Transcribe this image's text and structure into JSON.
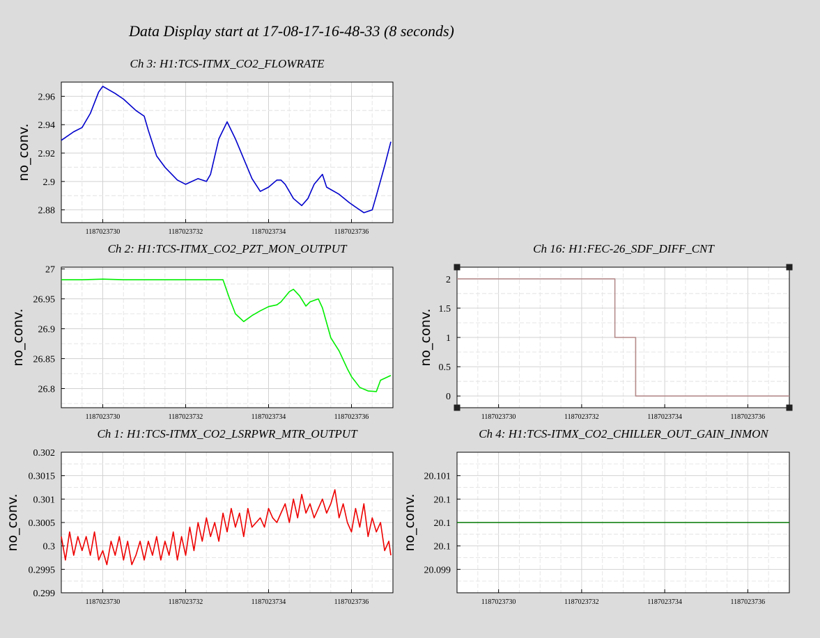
{
  "page_title": "Data Display start at 17-08-17-16-48-33 (8 seconds)",
  "chart_data": [
    {
      "type": "line",
      "title": "Ch 3: H1:TCS-ITMX_CO2_FLOWRATE",
      "ylabel": "no_conv.",
      "color": "#0000cc",
      "xlim": [
        1187023729,
        1187023737
      ],
      "ylim": [
        2.871,
        2.97
      ],
      "xticks": [
        1187023730,
        1187023732,
        1187023734,
        1187023736
      ],
      "yticks": [
        2.88,
        2.9,
        2.92,
        2.94,
        2.96
      ],
      "ytick_labels": [
        "2.88",
        "2.9",
        "2.92",
        "2.94",
        "2.96"
      ],
      "series": [
        {
          "x": [
            1187023729.0,
            1187023729.3,
            1187023729.5,
            1187023729.7,
            1187023729.9,
            1187023730.0,
            1187023730.3,
            1187023730.5,
            1187023730.8,
            1187023731.0,
            1187023731.1,
            1187023731.3,
            1187023731.5,
            1187023731.8,
            1187023732.0,
            1187023732.3,
            1187023732.5,
            1187023732.6,
            1187023732.8,
            1187023733.0,
            1187023733.2,
            1187023733.4,
            1187023733.6,
            1187023733.8,
            1187023734.0,
            1187023734.2,
            1187023734.3,
            1187023734.4,
            1187023734.6,
            1187023734.8,
            1187023734.95,
            1187023735.1,
            1187023735.3,
            1187023735.4,
            1187023735.7,
            1187023735.95,
            1187023736.1,
            1187023736.3,
            1187023736.5,
            1187023736.6,
            1187023736.8,
            1187023736.95
          ],
          "y": [
            2.929,
            2.935,
            2.938,
            2.948,
            2.963,
            2.967,
            2.962,
            2.958,
            2.95,
            2.946,
            2.936,
            2.918,
            2.91,
            2.901,
            2.898,
            2.902,
            2.9,
            2.905,
            2.93,
            2.942,
            2.93,
            2.916,
            2.902,
            2.893,
            2.896,
            2.901,
            2.901,
            2.898,
            2.888,
            2.883,
            2.888,
            2.898,
            2.905,
            2.896,
            2.891,
            2.885,
            2.882,
            2.878,
            2.88,
            2.89,
            2.911,
            2.928
          ]
        }
      ]
    },
    {
      "type": "line",
      "title": "Ch 2: H1:TCS-ITMX_CO2_PZT_MON_OUTPUT",
      "ylabel": "no_conv.",
      "color": "#00ee00",
      "xlim": [
        1187023729,
        1187023737
      ],
      "ylim": [
        26.768,
        27.003
      ],
      "xticks": [
        1187023730,
        1187023732,
        1187023734,
        1187023736
      ],
      "yticks": [
        26.8,
        26.85,
        26.9,
        26.95,
        27.0
      ],
      "ytick_labels": [
        "26.8",
        "26.85",
        "26.9",
        "26.95",
        "27"
      ],
      "series": [
        {
          "x": [
            1187023729.0,
            1187023729.5,
            1187023730.0,
            1187023730.5,
            1187023731.0,
            1187023731.5,
            1187023732.0,
            1187023732.5,
            1187023732.9,
            1187023733.05,
            1187023733.2,
            1187023733.4,
            1187023733.6,
            1187023733.8,
            1187023734.0,
            1187023734.2,
            1187023734.3,
            1187023734.5,
            1187023734.6,
            1187023734.75,
            1187023734.9,
            1187023735.0,
            1187023735.2,
            1187023735.3,
            1187023735.5,
            1187023735.7,
            1187023735.9,
            1187023736.0,
            1187023736.2,
            1187023736.4,
            1187023736.6,
            1187023736.7,
            1187023736.95
          ],
          "y": [
            26.982,
            26.982,
            26.983,
            26.982,
            26.982,
            26.982,
            26.982,
            26.982,
            26.982,
            26.952,
            26.925,
            26.912,
            26.922,
            26.93,
            26.937,
            26.94,
            26.945,
            26.962,
            26.966,
            26.955,
            26.938,
            26.945,
            26.95,
            26.935,
            26.885,
            26.863,
            26.833,
            26.82,
            26.802,
            26.796,
            26.795,
            26.814,
            26.822
          ]
        }
      ]
    },
    {
      "type": "line",
      "title": "Ch 16: H1:FEC-26_SDF_DIFF_CNT",
      "ylabel": "no_conv.",
      "color": "#b58b8b",
      "xlim": [
        1187023729,
        1187023737
      ],
      "ylim": [
        -0.2,
        2.2
      ],
      "xticks": [
        1187023730,
        1187023732,
        1187023734,
        1187023736
      ],
      "yticks": [
        0,
        0.5,
        1,
        1.5,
        2
      ],
      "ytick_labels": [
        "0",
        "0.5",
        "1",
        "1.5",
        "2"
      ],
      "series": [
        {
          "x": [
            1187023729.0,
            1187023732.8,
            1187023732.8,
            1187023733.3,
            1187023733.3,
            1187023737.0
          ],
          "y": [
            2,
            2,
            1,
            1,
            0,
            0
          ]
        }
      ]
    },
    {
      "type": "line",
      "title": "Ch 1: H1:TCS-ITMX_CO2_LSRPWR_MTR_OUTPUT",
      "ylabel": "no_conv.",
      "color": "#ee0000",
      "xlim": [
        1187023729,
        1187023737
      ],
      "ylim": [
        0.299,
        0.302
      ],
      "xticks": [
        1187023730,
        1187023732,
        1187023734,
        1187023736
      ],
      "yticks": [
        0.299,
        0.2995,
        0.3,
        0.3005,
        0.301,
        0.3015,
        0.302
      ],
      "ytick_labels": [
        "0.299",
        "0.2995",
        "0.3",
        "0.3005",
        "0.301",
        "0.3015",
        "0.302"
      ],
      "series": [
        {
          "x": [
            1187023729.0,
            1187023729.1,
            1187023729.2,
            1187023729.3,
            1187023729.4,
            1187023729.5,
            1187023729.6,
            1187023729.7,
            1187023729.8,
            1187023729.9,
            1187023730.0,
            1187023730.1,
            1187023730.2,
            1187023730.3,
            1187023730.4,
            1187023730.5,
            1187023730.6,
            1187023730.7,
            1187023730.8,
            1187023730.9,
            1187023731.0,
            1187023731.1,
            1187023731.2,
            1187023731.3,
            1187023731.4,
            1187023731.5,
            1187023731.6,
            1187023731.7,
            1187023731.8,
            1187023731.9,
            1187023732.0,
            1187023732.1,
            1187023732.2,
            1187023732.3,
            1187023732.4,
            1187023732.5,
            1187023732.6,
            1187023732.7,
            1187023732.8,
            1187023732.9,
            1187023733.0,
            1187023733.1,
            1187023733.2,
            1187023733.3,
            1187023733.4,
            1187023733.5,
            1187023733.6,
            1187023733.7,
            1187023733.8,
            1187023733.9,
            1187023734.0,
            1187023734.1,
            1187023734.2,
            1187023734.3,
            1187023734.4,
            1187023734.5,
            1187023734.6,
            1187023734.7,
            1187023734.8,
            1187023734.9,
            1187023735.0,
            1187023735.1,
            1187023735.2,
            1187023735.3,
            1187023735.4,
            1187023735.5,
            1187023735.6,
            1187023735.7,
            1187023735.8,
            1187023735.9,
            1187023736.0,
            1187023736.1,
            1187023736.2,
            1187023736.3,
            1187023736.4,
            1187023736.5,
            1187023736.6,
            1187023736.7,
            1187023736.8,
            1187023736.9,
            1187023736.95
          ],
          "y": [
            0.3002,
            0.2997,
            0.3003,
            0.2998,
            0.3002,
            0.2999,
            0.3002,
            0.2998,
            0.3003,
            0.2997,
            0.2999,
            0.2996,
            0.3001,
            0.2998,
            0.3002,
            0.2997,
            0.3001,
            0.2996,
            0.2998,
            0.3001,
            0.2997,
            0.3001,
            0.2998,
            0.3002,
            0.2997,
            0.3001,
            0.2998,
            0.3003,
            0.2997,
            0.3002,
            0.2998,
            0.3004,
            0.2999,
            0.3005,
            0.3001,
            0.3006,
            0.3002,
            0.3005,
            0.3001,
            0.3007,
            0.3003,
            0.3008,
            0.3004,
            0.3007,
            0.3002,
            0.3008,
            0.3004,
            0.3005,
            0.3006,
            0.3004,
            0.3008,
            0.3006,
            0.3005,
            0.3007,
            0.3009,
            0.3005,
            0.301,
            0.3006,
            0.3011,
            0.3007,
            0.3009,
            0.3006,
            0.3008,
            0.301,
            0.3007,
            0.3009,
            0.3012,
            0.3006,
            0.3009,
            0.3005,
            0.3003,
            0.3008,
            0.3004,
            0.3009,
            0.3002,
            0.3006,
            0.3003,
            0.3005,
            0.2999,
            0.3001,
            0.2998
          ]
        }
      ]
    },
    {
      "type": "line",
      "title": "Ch 4: H1:TCS-ITMX_CO2_CHILLER_OUT_GAIN_INMON",
      "ylabel": "no_conv.",
      "color": "#007700",
      "xlim": [
        1187023729,
        1187023737
      ],
      "ylim": [
        20.0985,
        20.1015
      ],
      "xticks": [
        1187023730,
        1187023732,
        1187023734,
        1187023736
      ],
      "yticks": [
        20.099,
        20.0995,
        20.1,
        20.1005,
        20.101
      ],
      "ytick_labels": [
        "20.099",
        "20.1",
        "20.1",
        "20.1",
        "20.101"
      ],
      "series": [
        {
          "x": [
            1187023729.0,
            1187023737.0
          ],
          "y": [
            20.1,
            20.1
          ]
        }
      ]
    }
  ]
}
